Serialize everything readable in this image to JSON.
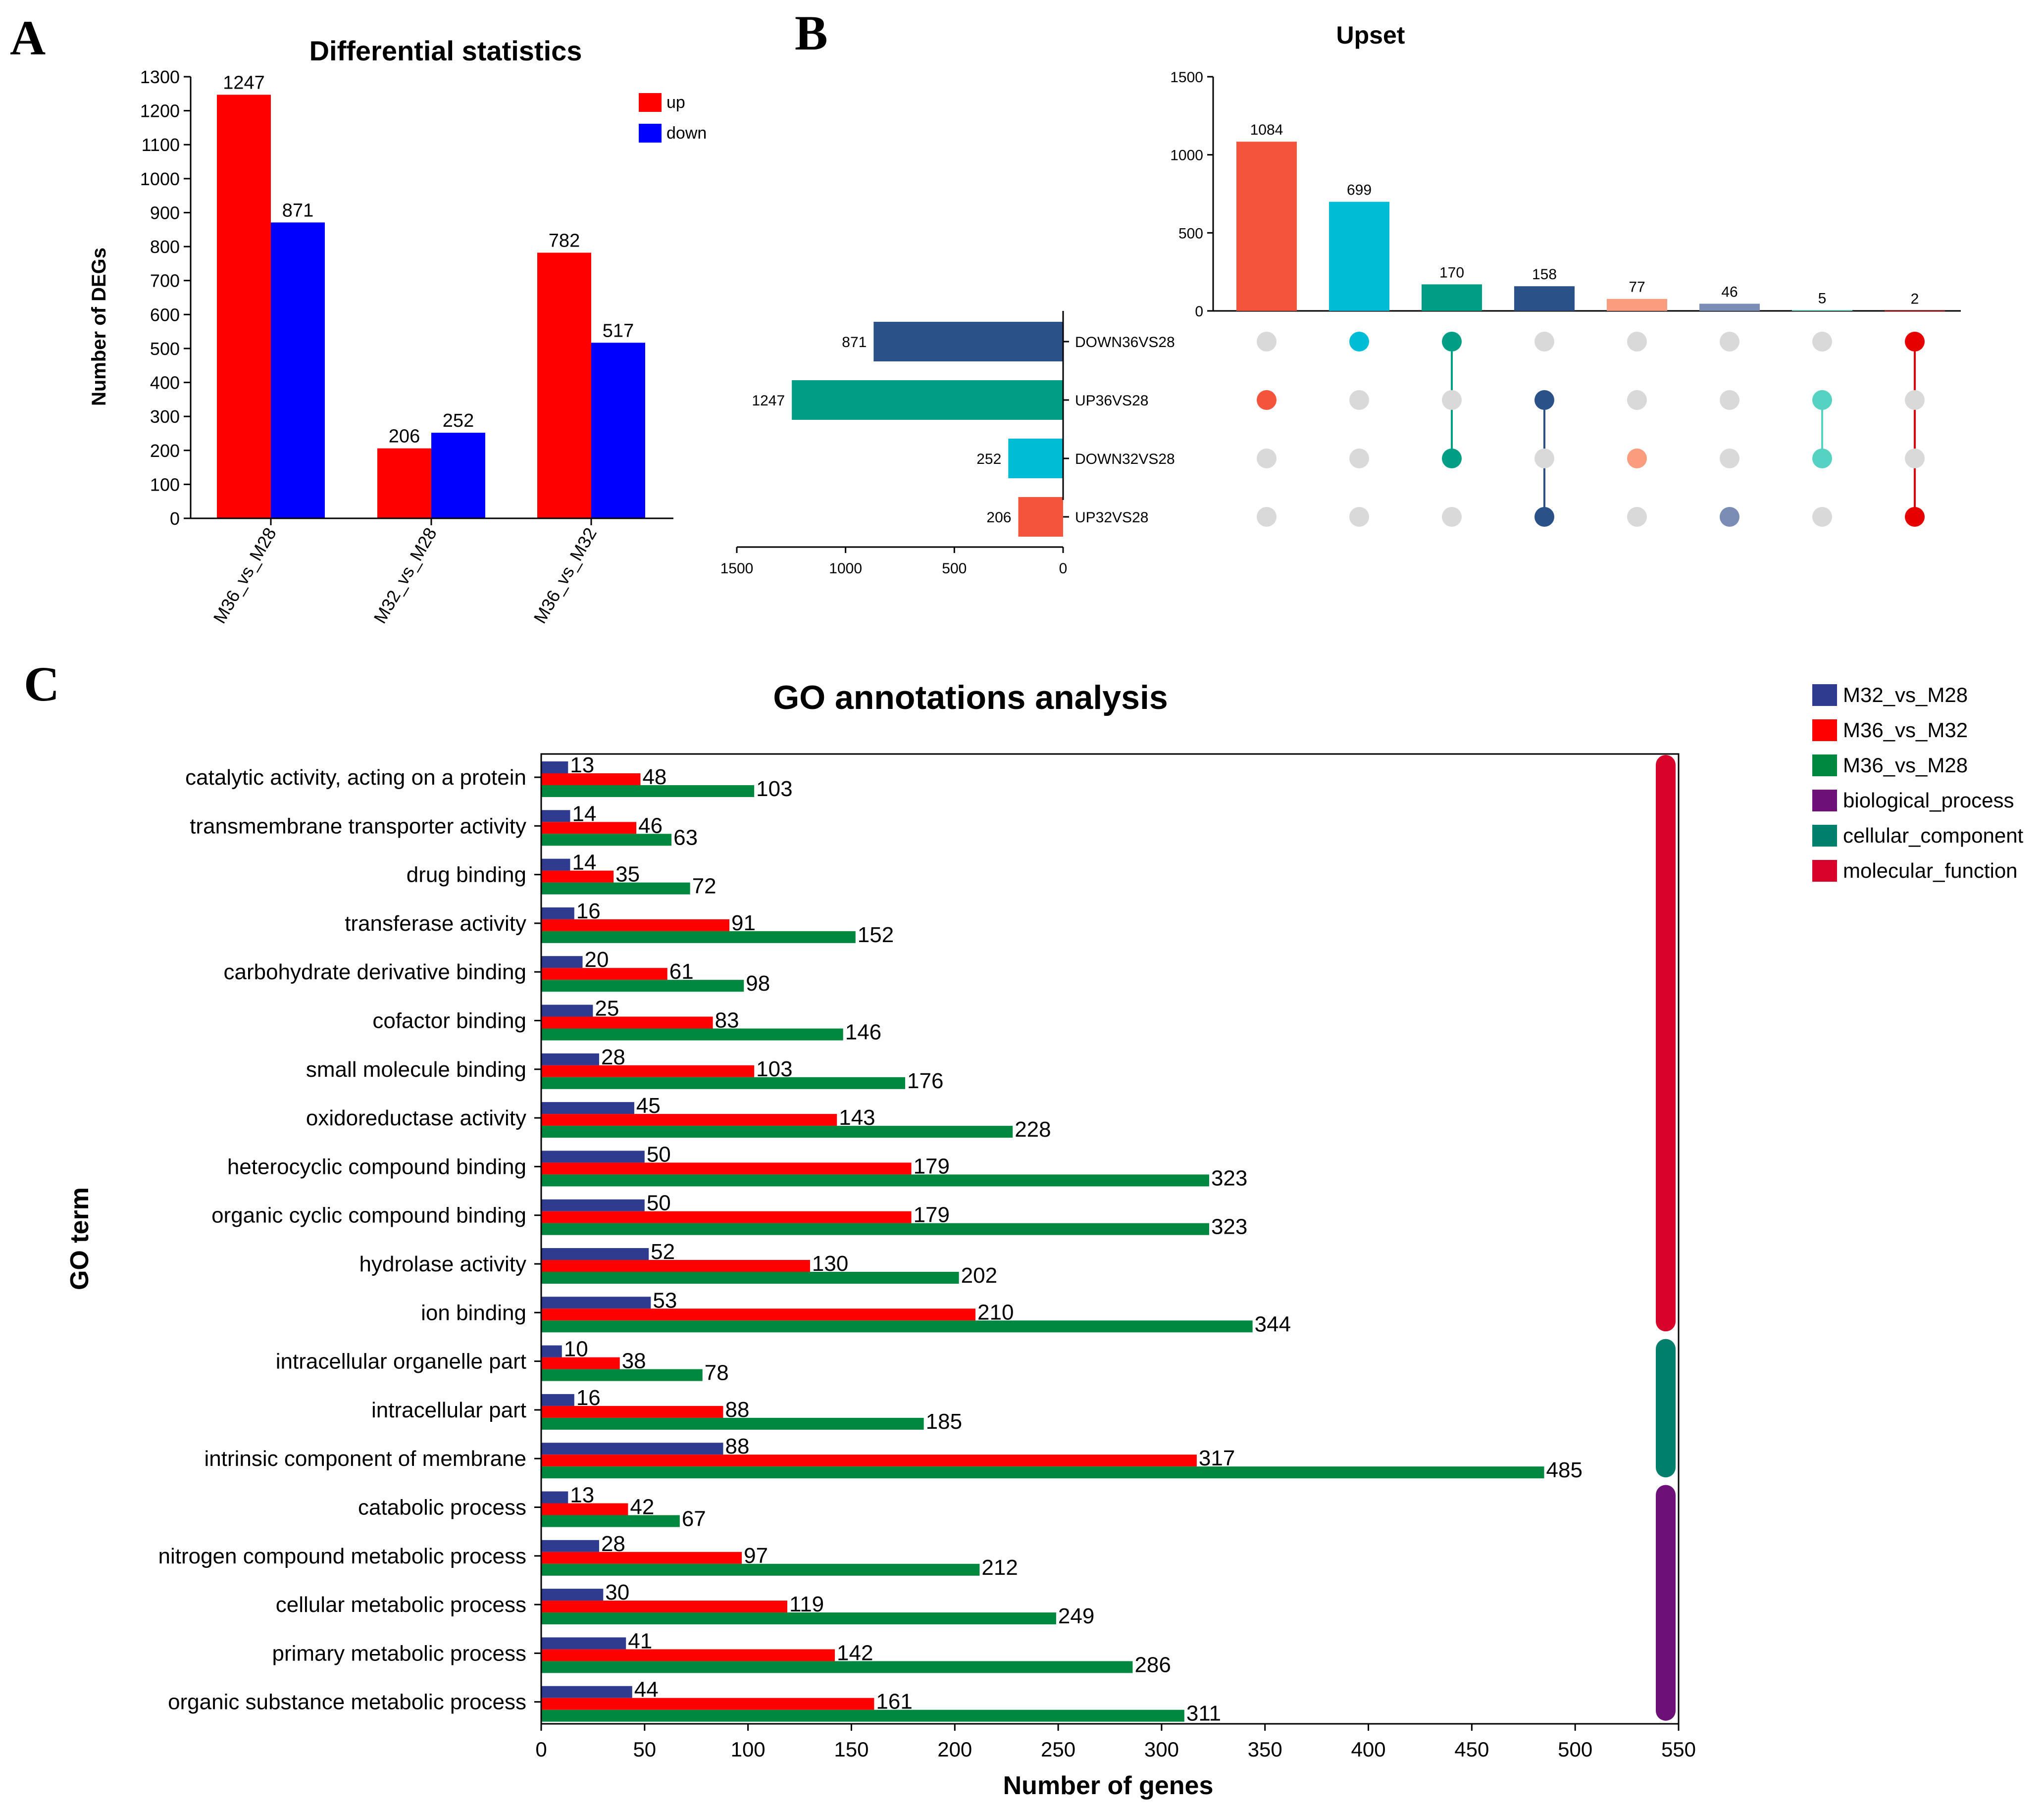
{
  "panels": {
    "a": {
      "letter": "A"
    },
    "b": {
      "letter": "B"
    },
    "c": {
      "letter": "C"
    }
  },
  "chart_data": [
    {
      "id": "A",
      "type": "bar",
      "title": "Differential statistics",
      "ylabel": "Number of DEGs",
      "xlabel": "",
      "categories": [
        "M36_vs_M28",
        "M32_vs_M28",
        "M36_vs_M32"
      ],
      "series": [
        {
          "name": "up",
          "color": "#FF0000",
          "values": [
            1247,
            206,
            782
          ]
        },
        {
          "name": "down",
          "color": "#0000FF",
          "values": [
            871,
            252,
            517
          ]
        }
      ],
      "ylim": [
        0,
        1300
      ],
      "yticks": [
        0,
        100,
        200,
        300,
        400,
        500,
        600,
        700,
        800,
        900,
        1000,
        1100,
        1200,
        1300
      ],
      "legend": "top-right"
    },
    {
      "id": "B",
      "type": "upset",
      "title": "Upset",
      "sets": [
        {
          "name": "DOWN36VS28",
          "size": 871,
          "color": "#2B5189"
        },
        {
          "name": "UP36VS28",
          "size": 1247,
          "color": "#009E84"
        },
        {
          "name": "DOWN32VS28",
          "size": 252,
          "color": "#00BCD5"
        },
        {
          "name": "UP32VS28",
          "size": 206,
          "color": "#F4543B"
        }
      ],
      "intersections": [
        {
          "value": 1084,
          "color": "#F4543B",
          "members": [
            "UP36VS28"
          ]
        },
        {
          "value": 699,
          "color": "#00BCD5",
          "members": [
            "DOWN36VS28"
          ]
        },
        {
          "value": 170,
          "color": "#009E84",
          "members": [
            "DOWN36VS28",
            "DOWN32VS28"
          ]
        },
        {
          "value": 158,
          "color": "#2B5189",
          "members": [
            "UP36VS28",
            "UP32VS28"
          ]
        },
        {
          "value": 77,
          "color": "#F99D7E",
          "members": [
            "DOWN32VS28"
          ]
        },
        {
          "value": 46,
          "color": "#7C8DB5",
          "members": [
            "UP32VS28"
          ]
        },
        {
          "value": 5,
          "color": "#55D2C1",
          "members": [
            "UP36VS28",
            "DOWN32VS28"
          ]
        },
        {
          "value": 2,
          "color": "#E60000",
          "members": [
            "DOWN36VS28",
            "UP32VS28"
          ]
        }
      ],
      "intersection_ylim": [
        0,
        1500
      ],
      "intersection_yticks": [
        0,
        500,
        1000,
        1500
      ],
      "set_size_xlim": [
        1500,
        0
      ],
      "set_size_xticks": [
        1500,
        1000,
        500,
        0
      ]
    },
    {
      "id": "C",
      "type": "bar",
      "orientation": "horizontal",
      "title": "GO annotations analysis",
      "xlabel": "Number of genes",
      "ylabel": "GO term",
      "xlim": [
        0,
        550
      ],
      "xticks": [
        0,
        50,
        100,
        150,
        200,
        250,
        300,
        350,
        400,
        450,
        500,
        550
      ],
      "categories": [
        "catalytic activity, acting on a protein",
        "transmembrane transporter activity",
        "drug binding",
        "transferase activity",
        "carbohydrate derivative binding",
        "cofactor binding",
        "small molecule binding",
        "oxidoreductase activity",
        "heterocyclic compound binding",
        "organic cyclic compound binding",
        "hydrolase activity",
        "ion binding",
        "intracellular organelle part",
        "intracellular part",
        "intrinsic component of membrane",
        "catabolic process",
        "nitrogen compound metabolic process",
        "cellular metabolic process",
        "primary metabolic process",
        "organic substance metabolic process"
      ],
      "series": [
        {
          "name": "M32_vs_M28",
          "color": "#2E3B8F",
          "values": [
            13,
            14,
            14,
            16,
            20,
            25,
            28,
            45,
            50,
            50,
            52,
            53,
            10,
            16,
            88,
            13,
            28,
            30,
            41,
            44
          ]
        },
        {
          "name": "M36_vs_M32",
          "color": "#FF0000",
          "values": [
            48,
            46,
            35,
            91,
            61,
            83,
            103,
            143,
            179,
            179,
            130,
            210,
            38,
            88,
            317,
            42,
            97,
            119,
            142,
            161
          ]
        },
        {
          "name": "M36_vs_M28",
          "color": "#00893E",
          "values": [
            103,
            63,
            72,
            152,
            98,
            146,
            176,
            228,
            323,
            323,
            202,
            344,
            78,
            185,
            485,
            67,
            212,
            249,
            286,
            311
          ]
        }
      ],
      "groups": [
        {
          "name": "molecular_function",
          "color": "#D7032B",
          "first": 0,
          "last": 11
        },
        {
          "name": "cellular_component",
          "color": "#00806C",
          "first": 12,
          "last": 14
        },
        {
          "name": "biological_process",
          "color": "#6D1179",
          "first": 15,
          "last": 19
        }
      ],
      "legend": "top-right",
      "legend_order": [
        "M32_vs_M28",
        "M36_vs_M32",
        "M36_vs_M28",
        "biological_process",
        "cellular_component",
        "molecular_function"
      ]
    }
  ]
}
